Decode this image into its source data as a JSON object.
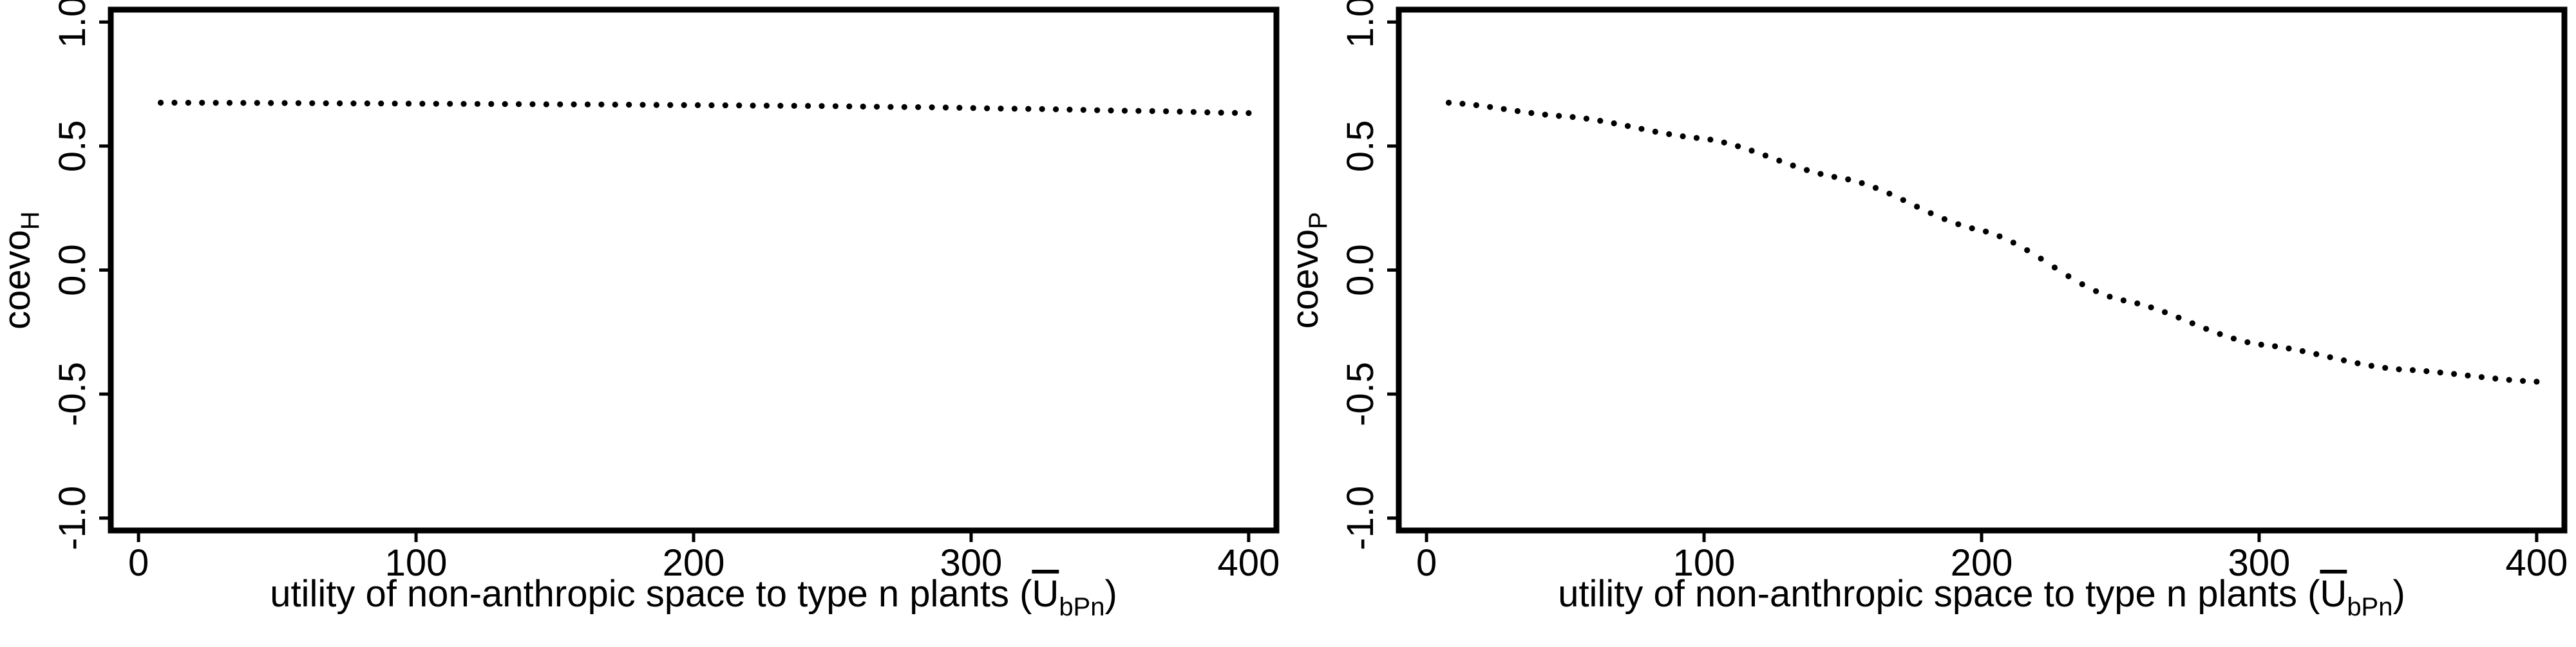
{
  "chart_data": [
    {
      "type": "scatter",
      "ylabel_main": "coevo",
      "ylabel_sub": "H",
      "xlabel_main": "utility of non-anthropic space to type n plants (",
      "xlabel_sym": "U",
      "xlabel_sub": "bPn",
      "xlabel_close": ")",
      "xlim": [
        -10,
        410
      ],
      "ylim": [
        -1.05,
        1.05
      ],
      "xticks": [
        0,
        100,
        200,
        300,
        400
      ],
      "xtick_labels": [
        "0",
        "100",
        "200",
        "300",
        "400"
      ],
      "yticks": [
        -1.0,
        -0.5,
        0.0,
        0.5,
        1.0
      ],
      "ytick_labels": [
        "-1.0",
        "-0.5",
        "0.0",
        "0.5",
        "1.0"
      ],
      "grid": false,
      "color": "#000000",
      "x": [
        8,
        40,
        80,
        120,
        160,
        200,
        240,
        280,
        320,
        360,
        400
      ],
      "y": [
        0.675,
        0.674,
        0.672,
        0.67,
        0.668,
        0.665,
        0.662,
        0.657,
        0.65,
        0.642,
        0.633
      ]
    },
    {
      "type": "scatter",
      "ylabel_main": "coevo",
      "ylabel_sub": "P",
      "xlabel_main": "utility of non-anthropic space to type n plants (",
      "xlabel_sym": "U",
      "xlabel_sub": "bPn",
      "xlabel_close": ")",
      "xlim": [
        -10,
        410
      ],
      "ylim": [
        -1.05,
        1.05
      ],
      "xticks": [
        0,
        100,
        200,
        300,
        400
      ],
      "xtick_labels": [
        "0",
        "100",
        "200",
        "300",
        "400"
      ],
      "yticks": [
        -1.0,
        -0.5,
        0.0,
        0.5,
        1.0
      ],
      "ytick_labels": [
        "-1.0",
        "-0.5",
        "0.0",
        "0.5",
        "1.0"
      ],
      "grid": false,
      "color": "#000000",
      "x": [
        8,
        50,
        100,
        150,
        200,
        250,
        300,
        350,
        400
      ],
      "y": [
        0.675,
        0.62,
        0.53,
        0.37,
        0.16,
        -0.12,
        -0.3,
        -0.4,
        -0.45
      ]
    }
  ]
}
